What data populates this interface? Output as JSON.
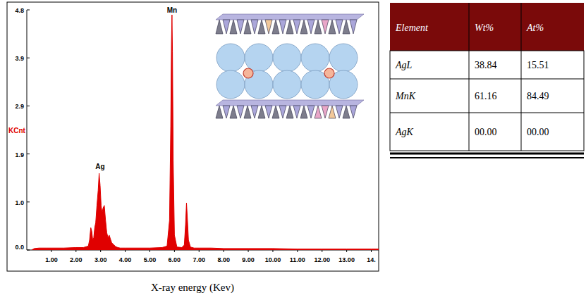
{
  "chart_data": {
    "type": "area",
    "color": "#e00000",
    "x_label": "X-ray energy (Kev)",
    "y_label": "KCnt",
    "grid": false,
    "xlim": [
      0,
      14.3
    ],
    "ylim": [
      0,
      4.85
    ],
    "xticks": [
      {
        "value": 1,
        "label": "1.00"
      },
      {
        "value": 2,
        "label": "2.00"
      },
      {
        "value": 3,
        "label": "3.00"
      },
      {
        "value": 4,
        "label": "4.00"
      },
      {
        "value": 5,
        "label": "5.00"
      },
      {
        "value": 6,
        "label": "6.00"
      },
      {
        "value": 7,
        "label": "7.00"
      },
      {
        "value": 8,
        "label": "8.00"
      },
      {
        "value": 9,
        "label": "9.00"
      },
      {
        "value": 10,
        "label": "10.00"
      },
      {
        "value": 11,
        "label": "11.00"
      },
      {
        "value": 12,
        "label": "12.00"
      },
      {
        "value": 13,
        "label": "13.00"
      },
      {
        "value": 14,
        "label": "14."
      }
    ],
    "yticks": [
      {
        "value": 0,
        "label": "0.0"
      },
      {
        "value": 0.97,
        "label": "1.0"
      },
      {
        "value": 1.94,
        "label": "1.9"
      },
      {
        "value": 2.91,
        "label": "2.9"
      },
      {
        "value": 3.88,
        "label": "3.9"
      },
      {
        "value": 4.85,
        "label": "4.8"
      }
    ],
    "x": [
      0.2,
      0.3,
      0.5,
      0.8,
      1.0,
      1.5,
      2.0,
      2.3,
      2.5,
      2.55,
      2.6,
      2.64,
      2.68,
      2.72,
      2.76,
      2.8,
      2.85,
      2.9,
      2.94,
      2.98,
      3.02,
      3.06,
      3.1,
      3.15,
      3.2,
      3.25,
      3.3,
      3.35,
      3.4,
      3.45,
      3.5,
      3.55,
      3.6,
      3.7,
      3.8,
      4.0,
      4.5,
      5.0,
      5.5,
      5.7,
      5.8,
      5.85,
      5.88,
      5.9,
      5.92,
      5.95,
      6.0,
      6.1,
      6.3,
      6.4,
      6.45,
      6.49,
      6.53,
      6.57,
      6.65,
      6.8,
      7.0,
      7.5,
      8.0,
      9.0,
      10.0,
      11.0,
      12.0,
      13.0,
      14.0,
      14.3
    ],
    "values": [
      0.0,
      0.03,
      0.04,
      0.04,
      0.04,
      0.04,
      0.05,
      0.05,
      0.08,
      0.2,
      0.45,
      0.38,
      0.2,
      0.25,
      0.45,
      0.55,
      0.9,
      1.2,
      1.55,
      1.3,
      0.9,
      0.75,
      0.85,
      0.9,
      0.6,
      0.35,
      0.25,
      0.3,
      0.22,
      0.15,
      0.12,
      0.1,
      0.07,
      0.05,
      0.04,
      0.04,
      0.04,
      0.04,
      0.05,
      0.08,
      0.6,
      2.5,
      4.2,
      4.75,
      4.0,
      1.8,
      0.3,
      0.06,
      0.05,
      0.1,
      0.5,
      0.95,
      0.6,
      0.2,
      0.06,
      0.04,
      0.04,
      0.04,
      0.03,
      0.03,
      0.03,
      0.02,
      0.02,
      0.02,
      0.02,
      0.02
    ],
    "annotations": [
      {
        "text": "Ag",
        "x": 2.98,
        "y": 1.6
      },
      {
        "text": "Mn",
        "x": 5.9,
        "y": 4.75
      }
    ]
  },
  "table": {
    "header": [
      "Element",
      "Wt%",
      "At%"
    ],
    "rows": [
      [
        "AgL",
        "38.84",
        "15.51"
      ],
      [
        "MnK",
        "61.16",
        "84.49"
      ],
      [
        "AgK",
        "00.00",
        "00.00"
      ]
    ]
  }
}
